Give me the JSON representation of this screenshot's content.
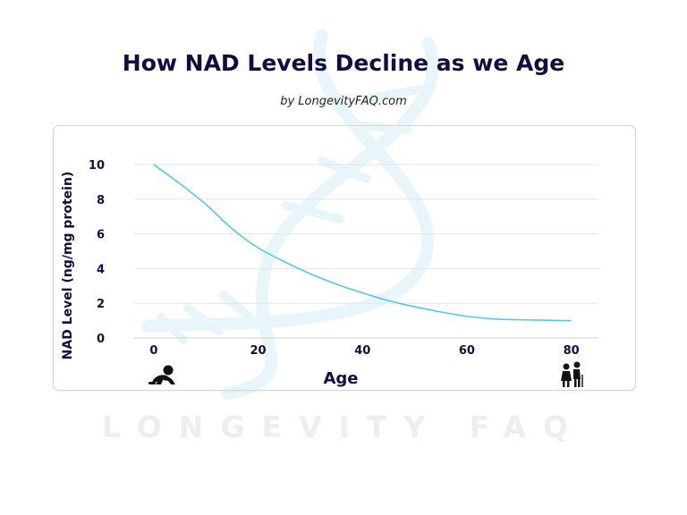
{
  "header": {
    "title": "How NAD Levels Decline as we Age",
    "subtitle": "by LongevityFAQ.com"
  },
  "watermark": {
    "text": "LONGEVITY FAQ"
  },
  "colors": {
    "line": "#55c8e8",
    "title": "#140b3f",
    "grid": "#e6e6e6",
    "dna": "#e8f6fc",
    "watermark": "#eeeeee"
  },
  "chart_data": {
    "type": "line",
    "title": "How NAD Levels Decline as we Age",
    "xlabel": "Age",
    "ylabel": "NAD Level (ng/mg protein)",
    "xlim": [
      -7,
      90
    ],
    "ylim": [
      0,
      10
    ],
    "x_ticks": [
      0,
      20,
      40,
      60,
      80
    ],
    "y_ticks": [
      0,
      2,
      4,
      6,
      8,
      10
    ],
    "grid": true,
    "series": [
      {
        "name": "NAD Level",
        "x": [
          0,
          5,
          10,
          15,
          20,
          25,
          30,
          35,
          40,
          45,
          50,
          55,
          60,
          65,
          70,
          75,
          80
        ],
        "y": [
          10,
          8.9,
          7.7,
          6.3,
          5.2,
          4.4,
          3.7,
          3.1,
          2.6,
          2.15,
          1.8,
          1.5,
          1.25,
          1.1,
          1.05,
          1.02,
          1.0
        ]
      }
    ],
    "icons": {
      "start": "baby-crawling-icon",
      "end": "elderly-couple-icon"
    }
  }
}
